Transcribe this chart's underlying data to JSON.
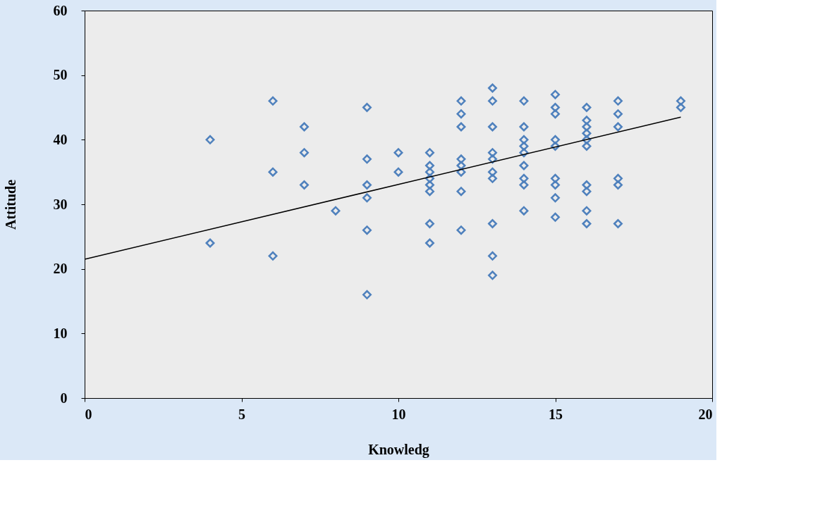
{
  "chart_data": {
    "type": "scatter",
    "xlabel": "Knowledg",
    "ylabel": "Attitude",
    "marker": "diamond",
    "grid": false,
    "xlim": [
      0,
      20
    ],
    "xticks": [
      0,
      5,
      10,
      15,
      20
    ],
    "ylim": [
      0,
      60
    ],
    "yticks": [
      0,
      10,
      20,
      30,
      40,
      50,
      60
    ],
    "series": [
      {
        "color": "#4f81bd",
        "x": [
          4,
          4,
          6,
          6,
          6,
          7,
          7,
          7,
          8,
          9,
          9,
          9,
          9,
          9,
          9,
          10,
          10,
          11,
          11,
          11,
          11,
          11,
          11,
          11,
          11,
          12,
          12,
          12,
          12,
          12,
          12,
          12,
          12,
          13,
          13,
          13,
          13,
          13,
          13,
          13,
          13,
          13,
          13,
          14,
          14,
          14,
          14,
          14,
          14,
          14,
          14,
          14,
          15,
          15,
          15,
          15,
          15,
          15,
          15,
          15,
          15,
          16,
          16,
          16,
          16,
          16,
          16,
          16,
          16,
          16,
          16,
          17,
          17,
          17,
          17,
          17,
          17,
          19,
          19
        ],
        "values": [
          40,
          24,
          46,
          35,
          22,
          42,
          38,
          33,
          29,
          45,
          37,
          33,
          31,
          26,
          16,
          38,
          35,
          38,
          36,
          35,
          34,
          33,
          32,
          27,
          24,
          46,
          44,
          42,
          37,
          36,
          35,
          32,
          26,
          48,
          46,
          42,
          38,
          37,
          35,
          34,
          27,
          22,
          19,
          46,
          42,
          40,
          39,
          38,
          36,
          34,
          33,
          29,
          47,
          45,
          44,
          40,
          39,
          34,
          33,
          31,
          28,
          45,
          43,
          42,
          41,
          40,
          39,
          33,
          32,
          29,
          27,
          46,
          44,
          42,
          34,
          33,
          27,
          46,
          45
        ]
      },
      {
        "type": "line",
        "color": "#000000",
        "x": [
          0,
          19
        ],
        "values": [
          21.5,
          43.5
        ],
        "marker": "none"
      }
    ]
  }
}
